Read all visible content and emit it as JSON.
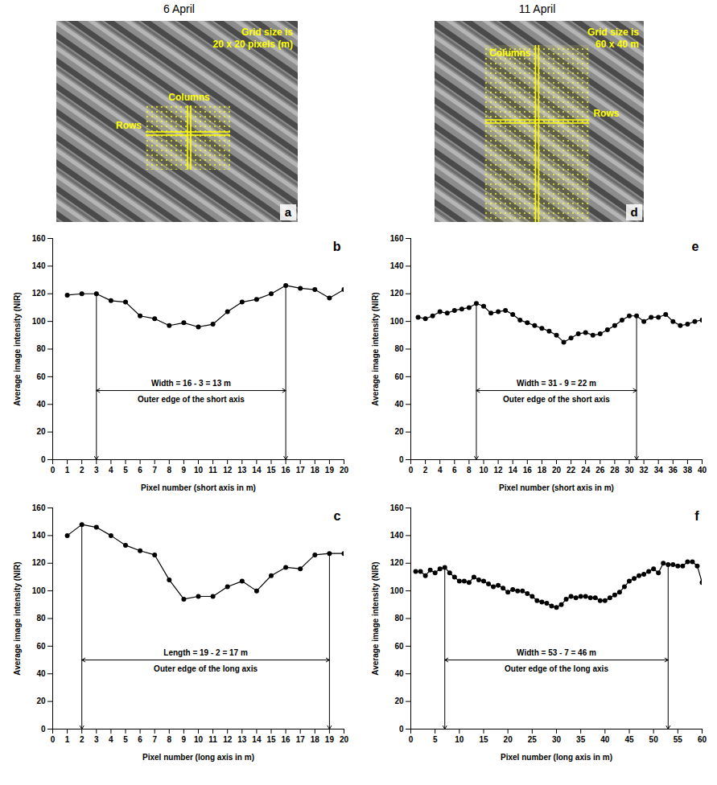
{
  "columns": [
    {
      "title": "6 April",
      "image": {
        "letter": "a",
        "grid_label": "Grid size is 20 x 20 pixels (m)",
        "columns_label": "Columns",
        "rows_label": "Rows"
      }
    },
    {
      "title": "11 April",
      "image": {
        "letter": "d",
        "grid_label": "Grid size is 60 x 40 m",
        "columns_label": "Columns",
        "rows_label": "Rows"
      }
    }
  ],
  "chart_data": [
    {
      "letter": "b",
      "type": "line",
      "marker": "circle",
      "color": "#000000",
      "xlabel": "Pixel number (short axis in m)",
      "ylabel": "Average image intensity (NIR)",
      "x": [
        1,
        2,
        3,
        4,
        5,
        6,
        7,
        8,
        9,
        10,
        11,
        12,
        13,
        14,
        15,
        16,
        17,
        18,
        19,
        20
      ],
      "values": [
        119,
        120,
        120,
        115,
        114,
        104,
        102,
        97,
        99,
        96,
        98,
        107,
        114,
        116,
        120,
        126,
        124,
        123,
        117,
        123
      ],
      "xlim": [
        0,
        20
      ],
      "xticks": [
        0,
        1,
        2,
        3,
        4,
        5,
        6,
        7,
        8,
        9,
        10,
        11,
        12,
        13,
        14,
        15,
        16,
        17,
        18,
        19,
        20
      ],
      "ylim": [
        0,
        160
      ],
      "yticks": [
        0,
        20,
        40,
        60,
        80,
        100,
        120,
        140,
        160
      ],
      "annotations": [
        {
          "x_start": 3,
          "x_end": 16,
          "y": 50,
          "text": "Width = 16 - 3 = 13 m",
          "subtext": "Outer edge of the short axis"
        }
      ]
    },
    {
      "letter": "c",
      "type": "line",
      "marker": "circle",
      "color": "#000000",
      "xlabel": "Pixel number (long axis in m)",
      "ylabel": "Average image intensity (NIR)",
      "x": [
        1,
        2,
        3,
        4,
        5,
        6,
        7,
        8,
        9,
        10,
        11,
        12,
        13,
        14,
        15,
        16,
        17,
        18,
        19,
        20
      ],
      "values": [
        140,
        148,
        146,
        140,
        133,
        129,
        126,
        108,
        94,
        96,
        96,
        103,
        107,
        100,
        111,
        117,
        116,
        126,
        127,
        127
      ],
      "xlim": [
        0,
        20
      ],
      "xticks": [
        0,
        1,
        2,
        3,
        4,
        5,
        6,
        7,
        8,
        9,
        10,
        11,
        12,
        13,
        14,
        15,
        16,
        17,
        18,
        19,
        20
      ],
      "ylim": [
        0,
        160
      ],
      "yticks": [
        0,
        20,
        40,
        60,
        80,
        100,
        120,
        140,
        160
      ],
      "annotations": [
        {
          "x_start": 2,
          "x_end": 19,
          "y": 50,
          "text": "Length = 19 - 2 = 17 m",
          "subtext": "Outer edge of the long axis"
        }
      ]
    },
    {
      "letter": "e",
      "type": "line",
      "marker": "circle",
      "color": "#000000",
      "xlabel": "Pixel number (short axis in m)",
      "ylabel": "Average image intensity (NIR)",
      "x": [
        1,
        2,
        3,
        4,
        5,
        6,
        7,
        8,
        9,
        10,
        11,
        12,
        13,
        14,
        15,
        16,
        17,
        18,
        19,
        20,
        21,
        22,
        23,
        24,
        25,
        26,
        27,
        28,
        29,
        30,
        31,
        32,
        33,
        34,
        35,
        36,
        37,
        38,
        39,
        40
      ],
      "values": [
        103,
        102,
        104,
        107,
        106,
        108,
        109,
        110,
        113,
        111,
        106,
        107,
        108,
        105,
        101,
        99,
        97,
        95,
        93,
        90,
        85,
        88,
        91,
        92,
        90,
        91,
        94,
        97,
        101,
        104,
        104,
        100,
        103,
        103,
        105,
        100,
        97,
        98,
        100,
        101
      ],
      "xlim": [
        0,
        40
      ],
      "xticks": [
        0,
        2,
        4,
        6,
        8,
        10,
        12,
        14,
        16,
        18,
        20,
        22,
        24,
        26,
        28,
        30,
        32,
        34,
        36,
        38,
        40
      ],
      "ylim": [
        0,
        160
      ],
      "yticks": [
        0,
        20,
        40,
        60,
        80,
        100,
        120,
        140,
        160
      ],
      "annotations": [
        {
          "x_start": 9,
          "x_end": 31,
          "y": 50,
          "text": "Width = 31 - 9 = 22 m",
          "subtext": "Outer edge of the short axis"
        }
      ]
    },
    {
      "letter": "f",
      "type": "line",
      "marker": "circle",
      "color": "#000000",
      "xlabel": "Pixel number (long axis in m)",
      "ylabel": "Average image intensity (NIR)",
      "x": [
        1,
        2,
        3,
        4,
        5,
        6,
        7,
        8,
        9,
        10,
        11,
        12,
        13,
        14,
        15,
        16,
        17,
        18,
        19,
        20,
        21,
        22,
        23,
        24,
        25,
        26,
        27,
        28,
        29,
        30,
        31,
        32,
        33,
        34,
        35,
        36,
        37,
        38,
        39,
        40,
        41,
        42,
        43,
        44,
        45,
        46,
        47,
        48,
        49,
        50,
        51,
        52,
        53,
        54,
        55,
        56,
        57,
        58,
        59,
        60
      ],
      "values": [
        114,
        114,
        111,
        115,
        113,
        116,
        117,
        113,
        110,
        107,
        107,
        106,
        110,
        108,
        107,
        105,
        103,
        104,
        102,
        99,
        101,
        100,
        100,
        98,
        96,
        93,
        92,
        91,
        89,
        88,
        90,
        94,
        96,
        95,
        96,
        96,
        95,
        95,
        93,
        93,
        95,
        97,
        99,
        103,
        107,
        109,
        111,
        112,
        114,
        116,
        113,
        120,
        119,
        119,
        118,
        118,
        121,
        121,
        118,
        106
      ],
      "xlim": [
        0,
        60
      ],
      "xticks": [
        0,
        5,
        10,
        15,
        20,
        25,
        30,
        35,
        40,
        45,
        50,
        55,
        60
      ],
      "ylim": [
        0,
        160
      ],
      "yticks": [
        0,
        20,
        40,
        60,
        80,
        100,
        120,
        140,
        160
      ],
      "annotations": [
        {
          "x_start": 7,
          "x_end": 53,
          "y": 50,
          "text": "Width = 53 - 7 = 46 m",
          "subtext": "Outer edge of the long axis"
        }
      ]
    }
  ]
}
